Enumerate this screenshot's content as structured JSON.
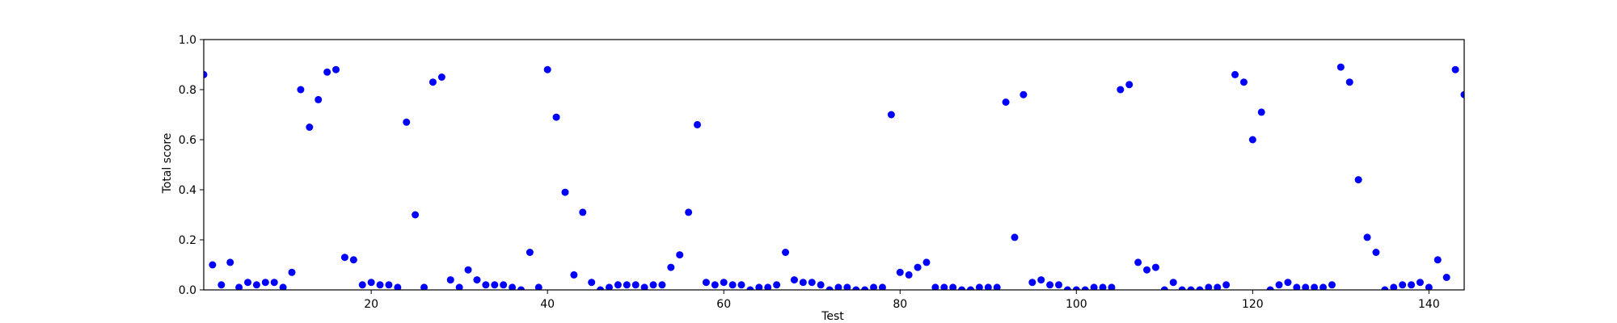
{
  "chart_data": {
    "type": "scatter",
    "title": "",
    "xlabel": "Test",
    "ylabel": "Total score",
    "xlim": [
      1,
      144
    ],
    "ylim": [
      0.0,
      1.0
    ],
    "xticks": [
      20,
      40,
      60,
      80,
      100,
      120,
      140
    ],
    "xtick_labels": [
      "20",
      "40",
      "60",
      "80",
      "100",
      "120",
      "140"
    ],
    "yticks": [
      0.0,
      0.2,
      0.4,
      0.6,
      0.8,
      1.0
    ],
    "ytick_labels": [
      "0.0",
      "0.2",
      "0.4",
      "0.6",
      "0.8",
      "1.0"
    ],
    "grid": false,
    "marker_color": "#0000ff",
    "x": [
      1,
      2,
      3,
      4,
      5,
      6,
      7,
      8,
      9,
      10,
      11,
      12,
      13,
      14,
      15,
      16,
      17,
      18,
      19,
      20,
      21,
      22,
      23,
      24,
      25,
      26,
      27,
      28,
      29,
      30,
      31,
      32,
      33,
      34,
      35,
      36,
      37,
      38,
      39,
      40,
      41,
      42,
      43,
      44,
      45,
      46,
      47,
      48,
      49,
      50,
      51,
      52,
      53,
      54,
      55,
      56,
      57,
      58,
      59,
      60,
      61,
      62,
      63,
      64,
      65,
      66,
      67,
      68,
      69,
      70,
      71,
      72,
      73,
      74,
      75,
      76,
      77,
      78,
      79,
      80,
      81,
      82,
      83,
      84,
      85,
      86,
      87,
      88,
      89,
      90,
      91,
      92,
      93,
      94,
      95,
      96,
      97,
      98,
      99,
      100,
      101,
      102,
      103,
      104,
      105,
      106,
      107,
      108,
      109,
      110,
      111,
      112,
      113,
      114,
      115,
      116,
      117,
      118,
      119,
      120,
      121,
      122,
      123,
      124,
      125,
      126,
      127,
      128,
      129,
      130,
      131,
      132,
      133,
      134,
      135,
      136,
      137,
      138,
      139,
      140,
      141,
      142,
      143,
      144
    ],
    "y": [
      0.86,
      0.1,
      0.02,
      0.11,
      0.01,
      0.03,
      0.02,
      0.03,
      0.03,
      0.01,
      0.07,
      0.8,
      0.65,
      0.76,
      0.87,
      0.88,
      0.13,
      0.12,
      0.02,
      0.03,
      0.02,
      0.02,
      0.01,
      0.67,
      0.3,
      0.01,
      0.83,
      0.85,
      0.04,
      0.01,
      0.08,
      0.04,
      0.02,
      0.02,
      0.02,
      0.01,
      0.0,
      0.15,
      0.01,
      0.88,
      0.69,
      0.39,
      0.06,
      0.31,
      0.03,
      0.0,
      0.01,
      0.02,
      0.02,
      0.02,
      0.01,
      0.02,
      0.02,
      0.09,
      0.14,
      0.31,
      0.66,
      0.03,
      0.02,
      0.03,
      0.02,
      0.02,
      0.0,
      0.01,
      0.01,
      0.02,
      0.15,
      0.04,
      0.03,
      0.03,
      0.02,
      0.0,
      0.01,
      0.01,
      0.0,
      0.0,
      0.01,
      0.01,
      0.7,
      0.07,
      0.06,
      0.09,
      0.11,
      0.01,
      0.01,
      0.01,
      0.0,
      0.0,
      0.01,
      0.01,
      0.01,
      0.75,
      0.21,
      0.78,
      0.03,
      0.04,
      0.02,
      0.02,
      0.0,
      0.0,
      0.0,
      0.01,
      0.01,
      0.01,
      0.8,
      0.82,
      0.11,
      0.08,
      0.09,
      0.0,
      0.03,
      0.0,
      0.0,
      0.0,
      0.01,
      0.01,
      0.02,
      0.86,
      0.83,
      0.6,
      0.71,
      0.0,
      0.02,
      0.03,
      0.01,
      0.01,
      0.01,
      0.01,
      0.02,
      0.89,
      0.83,
      0.44,
      0.21,
      0.15,
      0.0,
      0.01,
      0.02,
      0.02,
      0.03,
      0.01,
      0.12,
      0.05,
      0.88,
      0.78
    ]
  }
}
